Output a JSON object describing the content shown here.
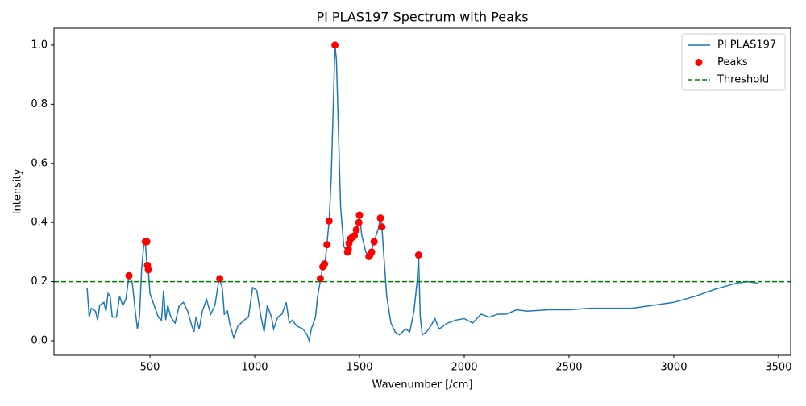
{
  "chart_data": {
    "type": "line",
    "title": "PI PLAS197 Spectrum with Peaks",
    "xlabel": "Wavenumber [/cm]",
    "ylabel": "Intensity",
    "xlim": [
      42,
      3558
    ],
    "ylim": [
      -0.049,
      1.057
    ],
    "xticks": [
      500,
      1000,
      1500,
      2000,
      2500,
      3000,
      3500
    ],
    "yticks": [
      {
        "value": 0,
        "label": "0.0"
      },
      {
        "value": 0.2,
        "label": "0.2"
      },
      {
        "value": 0.4,
        "label": "0.4"
      },
      {
        "value": 0.6,
        "label": "0.6"
      },
      {
        "value": 0.8,
        "label": "0.8"
      },
      {
        "value": 1,
        "label": "1.0"
      }
    ],
    "legend": "upper right",
    "series": [
      {
        "name": "PI PLAS197",
        "color": "#1f77b4",
        "style": "line",
        "x": [
          200,
          210,
          220,
          240,
          250,
          260,
          280,
          290,
          300,
          310,
          320,
          340,
          355,
          370,
          385,
          400,
          415,
          430,
          440,
          450,
          460,
          470,
          478,
          485,
          492,
          500,
          520,
          540,
          555,
          565,
          575,
          585,
          600,
          620,
          640,
          660,
          680,
          700,
          710,
          720,
          735,
          750,
          770,
          790,
          810,
          830,
          845,
          855,
          870,
          880,
          900,
          920,
          950,
          970,
          990,
          1010,
          1030,
          1045,
          1060,
          1080,
          1090,
          1110,
          1130,
          1150,
          1165,
          1180,
          1200,
          1230,
          1250,
          1260,
          1270,
          1290,
          1300,
          1315,
          1325,
          1335,
          1345,
          1355,
          1365,
          1375,
          1383,
          1390,
          1400,
          1410,
          1425,
          1440,
          1450,
          1470,
          1485,
          1495,
          1500,
          1510,
          1530,
          1545,
          1555,
          1570,
          1590,
          1600,
          1607,
          1615,
          1630,
          1650,
          1670,
          1690,
          1720,
          1740,
          1760,
          1775,
          1782,
          1790,
          1800,
          1820,
          1840,
          1860,
          1880,
          1920,
          1960,
          2000,
          2040,
          2080,
          2120,
          2160,
          2200,
          2250,
          2300,
          2400,
          2500,
          2600,
          2700,
          2800,
          2900,
          3000,
          3100,
          3200,
          3300,
          3350,
          3400
        ],
        "values": [
          0.18,
          0.08,
          0.11,
          0.1,
          0.07,
          0.12,
          0.13,
          0.1,
          0.16,
          0.15,
          0.08,
          0.08,
          0.15,
          0.12,
          0.14,
          0.22,
          0.2,
          0.1,
          0.04,
          0.08,
          0.24,
          0.32,
          0.335,
          0.26,
          0.24,
          0.16,
          0.12,
          0.08,
          0.07,
          0.17,
          0.07,
          0.12,
          0.08,
          0.06,
          0.12,
          0.13,
          0.1,
          0.05,
          0.03,
          0.08,
          0.04,
          0.1,
          0.14,
          0.09,
          0.12,
          0.21,
          0.18,
          0.09,
          0.1,
          0.06,
          0.01,
          0.05,
          0.07,
          0.08,
          0.18,
          0.17,
          0.08,
          0.03,
          0.12,
          0.08,
          0.04,
          0.08,
          0.09,
          0.13,
          0.06,
          0.07,
          0.05,
          0.04,
          0.02,
          0.0,
          0.04,
          0.08,
          0.15,
          0.21,
          0.25,
          0.26,
          0.33,
          0.405,
          0.55,
          0.8,
          1.0,
          0.95,
          0.7,
          0.45,
          0.32,
          0.3,
          0.35,
          0.36,
          0.38,
          0.4,
          0.43,
          0.36,
          0.3,
          0.285,
          0.3,
          0.335,
          0.38,
          0.415,
          0.385,
          0.3,
          0.15,
          0.06,
          0.03,
          0.02,
          0.04,
          0.03,
          0.1,
          0.2,
          0.29,
          0.08,
          0.02,
          0.03,
          0.05,
          0.075,
          0.04,
          0.06,
          0.07,
          0.075,
          0.06,
          0.09,
          0.08,
          0.09,
          0.09,
          0.105,
          0.1,
          0.105,
          0.105,
          0.11,
          0.11,
          0.11,
          0.12,
          0.13,
          0.15,
          0.175,
          0.195,
          0.2,
          0.195
        ]
      },
      {
        "name": "Peaks",
        "color": "#ff0000",
        "style": "scatter",
        "x": [
          400,
          478,
          485,
          488,
          492,
          833,
          1313,
          1325,
          1333,
          1345,
          1355,
          1383,
          1443,
          1447,
          1450,
          1458,
          1465,
          1475,
          1485,
          1497,
          1500,
          1545,
          1550,
          1558,
          1570,
          1600,
          1607,
          1782
        ],
        "values": [
          0.22,
          0.335,
          0.335,
          0.255,
          0.24,
          0.21,
          0.21,
          0.25,
          0.26,
          0.325,
          0.405,
          1.0,
          0.3,
          0.31,
          0.33,
          0.345,
          0.35,
          0.355,
          0.375,
          0.4,
          0.425,
          0.285,
          0.29,
          0.3,
          0.335,
          0.415,
          0.385,
          0.29
        ]
      },
      {
        "name": "Threshold",
        "color": "#008000",
        "style": "dashed",
        "value": 0.2
      }
    ]
  }
}
